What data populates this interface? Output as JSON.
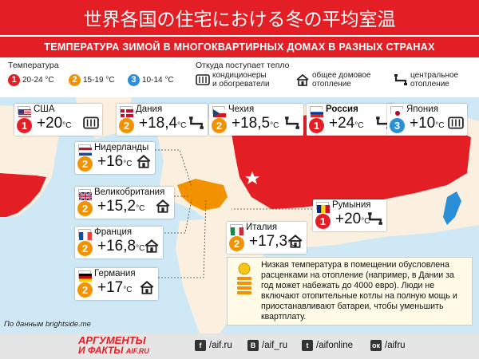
{
  "header": {
    "title": "世界各国の住宅における冬の平均室温",
    "subtitle": "ТЕМПЕРАТУРА ЗИМОЙ В МНОГОКВАРТИРНЫХ ДОМАХ В РАЗНЫХ СТРАНАХ"
  },
  "legend": {
    "temp_heading": "Температура",
    "temp_items": [
      {
        "num": "1",
        "label": "20-24 °С",
        "color": "#e31e24"
      },
      {
        "num": "2",
        "label": "15-19 °С",
        "color": "#f39200"
      },
      {
        "num": "3",
        "label": "10-14 °С",
        "color": "#2a8fd6"
      }
    ],
    "heat_heading": "Откуда поступает тепло",
    "heat_items": [
      {
        "icon": "heater-icon",
        "label_line1": "кондиционеры",
        "label_line2": "и обогреватели"
      },
      {
        "icon": "house-icon",
        "label_line1": "общее домовое",
        "label_line2": "отопление"
      },
      {
        "icon": "pipe-icon",
        "label_line1": "центральное",
        "label_line2": "отопление"
      }
    ]
  },
  "chart_data": {
    "type": "table",
    "unit": "°С",
    "columns": [
      "country",
      "temperature",
      "category",
      "heating"
    ],
    "rows": [
      {
        "country": "США",
        "temperature": "+20",
        "category": "1",
        "heating": "heater-icon",
        "flag": "usa"
      },
      {
        "country": "Дания",
        "temperature": "+18,4",
        "category": "2",
        "heating": "pipe-icon",
        "flag": "denmark"
      },
      {
        "country": "Чехия",
        "temperature": "+18,5",
        "category": "2",
        "heating": "pipe-icon",
        "flag": "czech"
      },
      {
        "country": "Россия",
        "temperature": "+24",
        "category": "1",
        "heating": "pipe-icon",
        "flag": "russia"
      },
      {
        "country": "Япония",
        "temperature": "+10",
        "category": "3",
        "heating": "heater-icon",
        "flag": "japan"
      },
      {
        "country": "Нидерланды",
        "temperature": "+16",
        "category": "2",
        "heating": "house-icon",
        "flag": "netherlands"
      },
      {
        "country": "Великобритания",
        "temperature": "+15,2",
        "category": "2",
        "heating": "house-icon",
        "flag": "uk"
      },
      {
        "country": "Франция",
        "temperature": "+16,8",
        "category": "2",
        "heating": "house-icon",
        "flag": "france"
      },
      {
        "country": "Германия",
        "temperature": "+17",
        "category": "2",
        "heating": "house-icon",
        "flag": "germany"
      },
      {
        "country": "Италия",
        "temperature": "+17,3",
        "category": "2",
        "heating": "house-icon",
        "flag": "italy"
      },
      {
        "country": "Румыния",
        "temperature": "+20",
        "category": "1",
        "heating": "pipe-icon",
        "flag": "romania"
      }
    ]
  },
  "colors": {
    "brand_red": "#e31e24",
    "cat1": "#e31e24",
    "cat2": "#f39200",
    "cat3": "#2a8fd6",
    "russia_fill": "#e31e24",
    "europe_fill": "#f39200",
    "land_fill": "#fbf0df",
    "sea_fill": "#cfe8f6",
    "japan_fill": "#2a8fd6"
  },
  "note": {
    "text": "Низкая температура в помещении обусловлена расценками на отопление (например, в Дании за год может набежать до 4000 евро). Люди не включают отопительные котлы на полную мощь и приостанавливают батареи, чтобы уменьшить квартплату.",
    "icon": "coins-icon"
  },
  "source": "По данным brightside.me",
  "footer": {
    "logo_line1": "АРГУМЕНТЫ",
    "logo_line2": "И ФАКТЫ",
    "logo_domain": "AIF.RU",
    "social": [
      {
        "icon": "facebook-icon",
        "glyph": "f",
        "handle": "/aif.ru"
      },
      {
        "icon": "vk-icon",
        "glyph": "В",
        "handle": "/aif_ru"
      },
      {
        "icon": "twitter-icon",
        "glyph": "t",
        "handle": "/aifonline"
      },
      {
        "icon": "ok-icon",
        "glyph": "ок",
        "handle": "/aifru"
      }
    ]
  }
}
